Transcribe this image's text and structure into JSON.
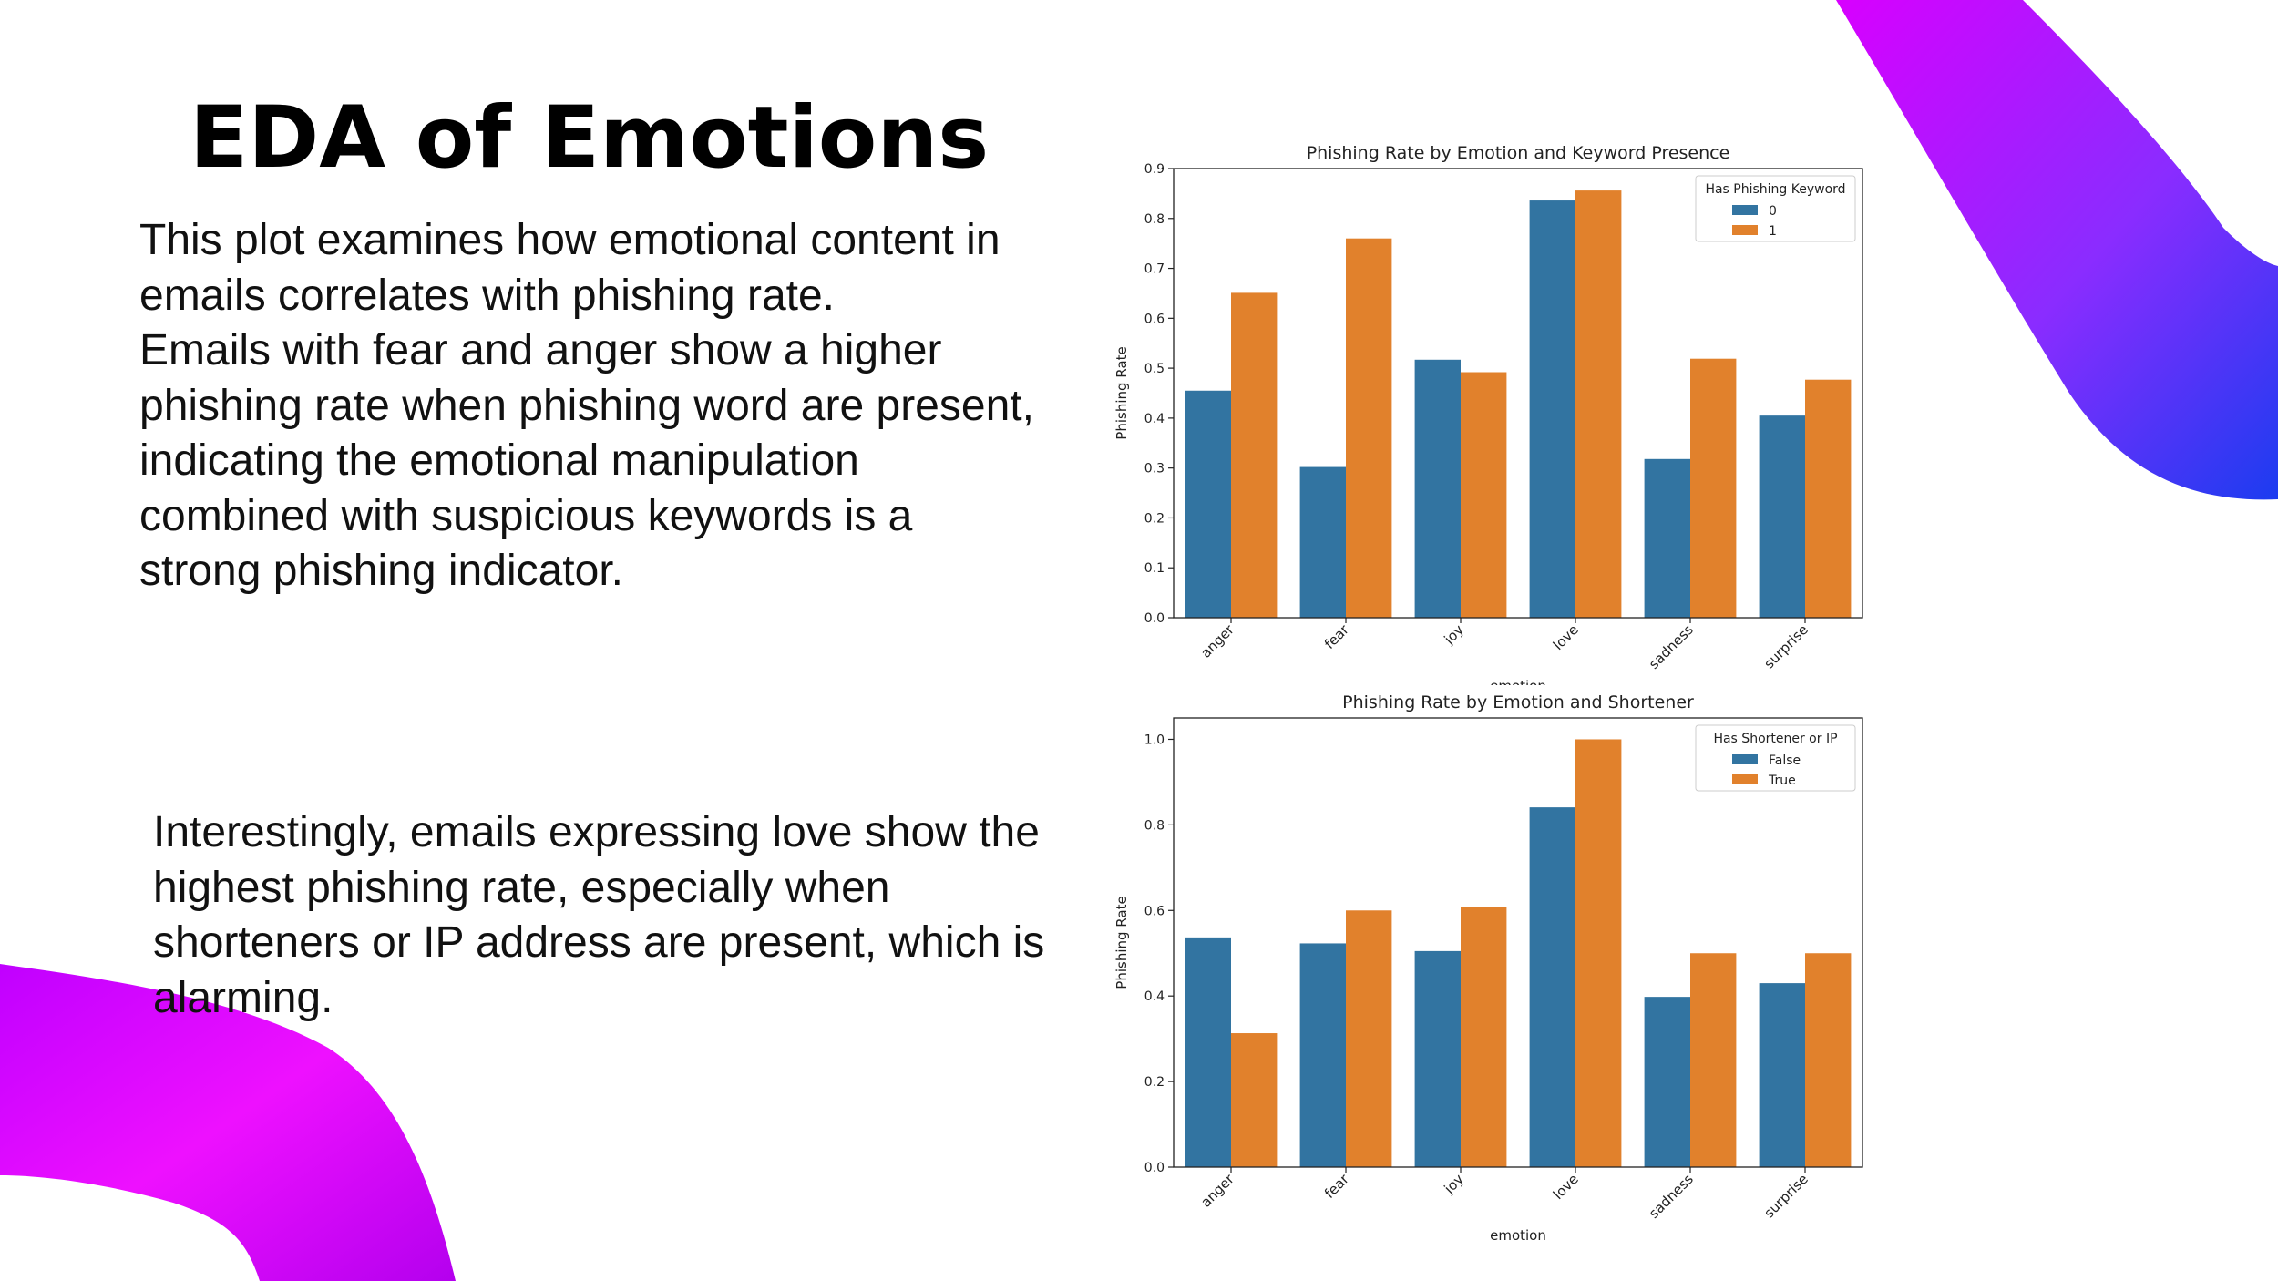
{
  "slide": {
    "title": "EDA of Emotions",
    "para1": [
      "This plot examines how emotional content in",
      "emails correlates with phishing rate.",
      "Emails with fear and anger show a higher",
      "phishing rate when phishing word are present,",
      "indicating the emotional manipulation",
      "combined with suspicious keywords is a",
      "strong phishing indicator."
    ],
    "para2": [
      "Interestingly, emails expressing love show the",
      "highest phishing rate, especially when",
      "shorteners or IP address are present, which is",
      "alarming."
    ]
  },
  "colors": {
    "series_blue": "#3274a1",
    "series_orange": "#e1812c",
    "deco_purple": "#d000ff",
    "deco_blue": "#3a2cf0"
  },
  "chart_data": [
    {
      "type": "bar",
      "title": "Phishing Rate by Emotion and Keyword Presence",
      "xlabel": "emotion",
      "ylabel": "Phishing Rate",
      "categories": [
        "anger",
        "fear",
        "joy",
        "love",
        "sadness",
        "surprise"
      ],
      "ylim": [
        0,
        0.9
      ],
      "yticks": [
        "0.0",
        "0.1",
        "0.2",
        "0.3",
        "0.4",
        "0.5",
        "0.6",
        "0.7",
        "0.8",
        "0.9"
      ],
      "legend_title": "Has Phishing Keyword",
      "legend_position": "top-right",
      "series": [
        {
          "name": "0",
          "values": [
            0.455,
            0.302,
            0.517,
            0.836,
            0.318,
            0.405
          ]
        },
        {
          "name": "1",
          "values": [
            0.651,
            0.76,
            0.492,
            0.856,
            0.519,
            0.477
          ]
        }
      ]
    },
    {
      "type": "bar",
      "title": "Phishing Rate by Emotion and Shortener",
      "xlabel": "emotion",
      "ylabel": "Phishing Rate",
      "categories": [
        "anger",
        "fear",
        "joy",
        "love",
        "sadness",
        "surprise"
      ],
      "ylim": [
        0,
        1.05
      ],
      "yticks": [
        "0.0",
        "0.2",
        "0.4",
        "0.6",
        "0.8",
        "1.0"
      ],
      "legend_title": "Has Shortener or IP",
      "legend_position": "top-right",
      "series": [
        {
          "name": "False",
          "values": [
            0.537,
            0.523,
            0.505,
            0.841,
            0.398,
            0.43
          ]
        },
        {
          "name": "True",
          "values": [
            0.313,
            0.6,
            0.607,
            1.0,
            0.5,
            0.5
          ]
        }
      ]
    }
  ]
}
